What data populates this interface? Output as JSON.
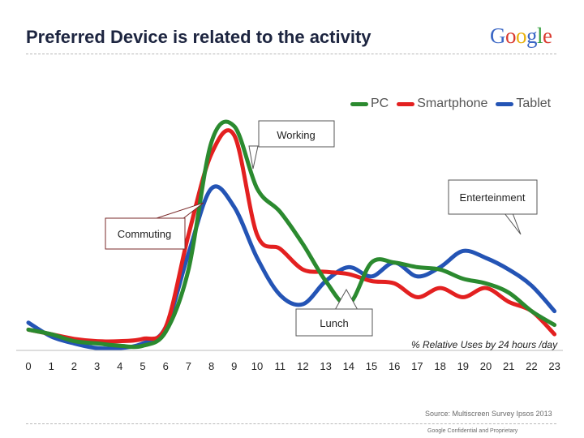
{
  "header": {
    "title": "Preferred Device is related to the activity",
    "logo": [
      "G",
      "o",
      "o",
      "g",
      "l",
      "e"
    ],
    "logo_colors": [
      "#3a66c5",
      "#d93a30",
      "#e8b10e",
      "#3a66c5",
      "#36a13f",
      "#d93a30"
    ]
  },
  "chart_data": {
    "type": "line",
    "title": "Preferred Device is related to the activity",
    "xlabel": "% Relative Uses by 24 hours /day",
    "ylabel": "",
    "x": [
      0,
      1,
      2,
      3,
      4,
      5,
      6,
      7,
      8,
      9,
      10,
      11,
      12,
      13,
      14,
      15,
      16,
      17,
      18,
      19,
      20,
      21,
      22,
      23
    ],
    "xticks": [
      "0",
      "1",
      "2",
      "3",
      "4",
      "5",
      "6",
      "7",
      "8",
      "9",
      "10",
      "11",
      "12",
      "13",
      "14",
      "15",
      "16",
      "17",
      "18",
      "19",
      "20",
      "21",
      "22",
      "23"
    ],
    "ylim": [
      0,
      100
    ],
    "grid": false,
    "legend_position": "top-right",
    "series": [
      {
        "name": "PC",
        "color": "#2b8a2f",
        "values": [
          9,
          7,
          4,
          3,
          2,
          2,
          8,
          35,
          90,
          97,
          70,
          60,
          46,
          30,
          20,
          38,
          38,
          36,
          35,
          31,
          29,
          25,
          17,
          11
        ]
      },
      {
        "name": "Smartphone",
        "color": "#e32020",
        "values": [
          9,
          7,
          5,
          4,
          4,
          5,
          10,
          50,
          85,
          93,
          50,
          44,
          35,
          34,
          33,
          30,
          29,
          23,
          27,
          23,
          27,
          21,
          17,
          7
        ]
      },
      {
        "name": "Tablet",
        "color": "#2454b5",
        "values": [
          12,
          6,
          3,
          1,
          1,
          3,
          10,
          42,
          70,
          62,
          40,
          24,
          20,
          30,
          36,
          32,
          38,
          32,
          36,
          43,
          40,
          35,
          28,
          17
        ]
      }
    ],
    "annotations": [
      {
        "label": "Working"
      },
      {
        "label": "Enterteinment"
      },
      {
        "label": "Commuting"
      },
      {
        "label": "Lunch"
      }
    ]
  },
  "footer": {
    "source": "Source: Multiscreen Survey Ipsos 2013",
    "confidential": "Google Confidential and Proprietary"
  }
}
